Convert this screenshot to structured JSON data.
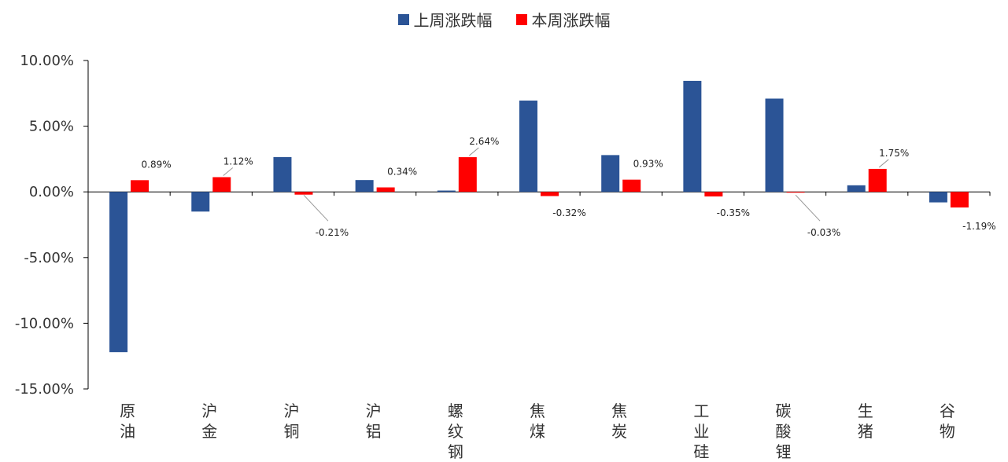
{
  "chart_data": {
    "type": "bar",
    "categories": [
      "原油",
      "沪金",
      "沪铜",
      "沪铝",
      "螺纹钢",
      "焦煤",
      "焦炭",
      "工业硅",
      "碳酸锂",
      "生猪",
      "谷物"
    ],
    "series": [
      {
        "name": "上周涨跌幅",
        "color": "#2B5496",
        "values": [
          -12.2,
          -1.5,
          2.65,
          0.9,
          0.1,
          6.95,
          2.8,
          8.45,
          7.1,
          0.5,
          -0.8
        ]
      },
      {
        "name": "本周涨跌幅",
        "color": "#FF0000",
        "values": [
          0.89,
          1.12,
          -0.21,
          0.34,
          2.64,
          -0.32,
          0.93,
          -0.35,
          -0.03,
          1.75,
          -1.19
        ],
        "data_labels": [
          "0.89%",
          "1.12%",
          "-0.21%",
          "0.34%",
          "2.64%",
          "-0.32%",
          "0.93%",
          "-0.35%",
          "-0.03%",
          "1.75%",
          "-1.19%"
        ]
      }
    ],
    "ylim": [
      -15,
      10
    ],
    "yticks": [
      10,
      5,
      0,
      -5,
      -10,
      -15
    ],
    "ytick_labels": [
      "10.00%",
      "5.00%",
      "0.00%",
      "-5.00%",
      "-10.00%",
      "-15.00%"
    ],
    "legend_position": "top-center",
    "grid": false,
    "title": "",
    "xlabel": "",
    "ylabel": ""
  }
}
